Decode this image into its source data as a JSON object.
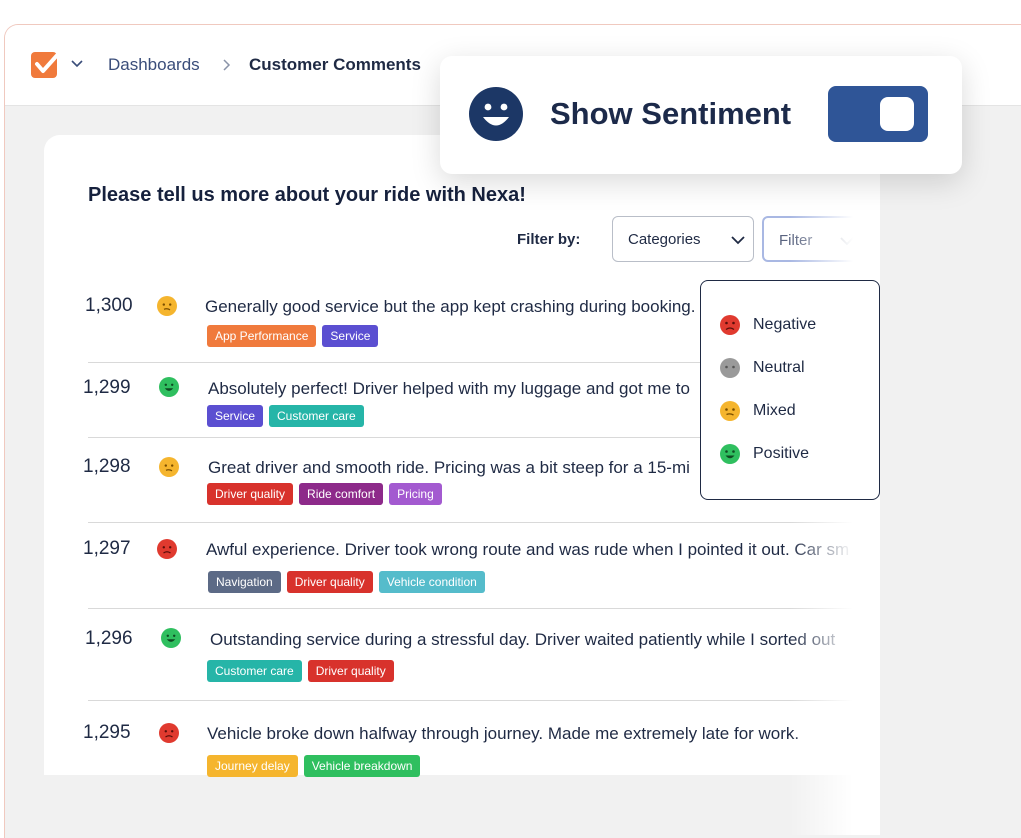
{
  "breadcrumb": {
    "root": "Dashboards",
    "current": "Customer Comments"
  },
  "sentiment_toggle": {
    "label": "Show Sentiment",
    "enabled": true
  },
  "survey": {
    "question": "Please tell us more about your ride with Nexa!"
  },
  "filters": {
    "label": "Filter by:",
    "categories_select": "Categories",
    "filter_select": "Filter",
    "options": [
      {
        "label": "Negative",
        "sentiment": "negative"
      },
      {
        "label": "Neutral",
        "sentiment": "neutral"
      },
      {
        "label": "Mixed",
        "sentiment": "mixed"
      },
      {
        "label": "Positive",
        "sentiment": "positive"
      }
    ]
  },
  "sentiment_colors": {
    "negative": "#e03a2f",
    "neutral": "#9a9a9a",
    "mixed": "#f5b52e",
    "positive": "#2fbf5f"
  },
  "comments": [
    {
      "id": "1,300",
      "sentiment": "mixed",
      "text": "Generally good service but the app kept crashing during booking.",
      "tags": [
        {
          "label": "App Performance",
          "color": "#f07a3c"
        },
        {
          "label": "Service",
          "color": "#5b4fd1"
        }
      ]
    },
    {
      "id": "1,299",
      "sentiment": "positive",
      "text": "Absolutely perfect! Driver helped with my luggage and got me to",
      "tags": [
        {
          "label": "Service",
          "color": "#5b4fd1"
        },
        {
          "label": "Customer care",
          "color": "#26b5a8"
        }
      ]
    },
    {
      "id": "1,298",
      "sentiment": "mixed",
      "text": "Great driver and smooth ride. Pricing was a bit steep for a 15-mi",
      "tags": [
        {
          "label": "Driver quality",
          "color": "#d8322c"
        },
        {
          "label": "Ride comfort",
          "color": "#8d2a8a"
        },
        {
          "label": "Pricing",
          "color": "#a35ad0"
        }
      ]
    },
    {
      "id": "1,297",
      "sentiment": "negative",
      "text": "Awful experience. Driver took wrong route and was rude when I pointed it out. Car sm",
      "tags": [
        {
          "label": "Navigation",
          "color": "#5c6a86"
        },
        {
          "label": "Driver quality",
          "color": "#d8322c"
        },
        {
          "label": "Vehicle condition",
          "color": "#55bccb"
        }
      ]
    },
    {
      "id": "1,296",
      "sentiment": "positive",
      "text": "Outstanding service during a stressful day. Driver waited patiently while I sorted out",
      "tags": [
        {
          "label": "Customer care",
          "color": "#26b5a8"
        },
        {
          "label": "Driver quality",
          "color": "#d8322c"
        }
      ]
    },
    {
      "id": "1,295",
      "sentiment": "negative",
      "text": "Vehicle broke down halfway through journey. Made me extremely late for work.",
      "tags": [
        {
          "label": "Journey delay",
          "color": "#f5b52e"
        },
        {
          "label": "Vehicle breakdown",
          "color": "#2fbf5f"
        }
      ]
    }
  ],
  "icons": {
    "logo": "checkbox-logo-icon",
    "chevron": "chevron-down-icon",
    "separator": "chevron-right-icon",
    "toggle_face": "smiley-face-icon"
  }
}
